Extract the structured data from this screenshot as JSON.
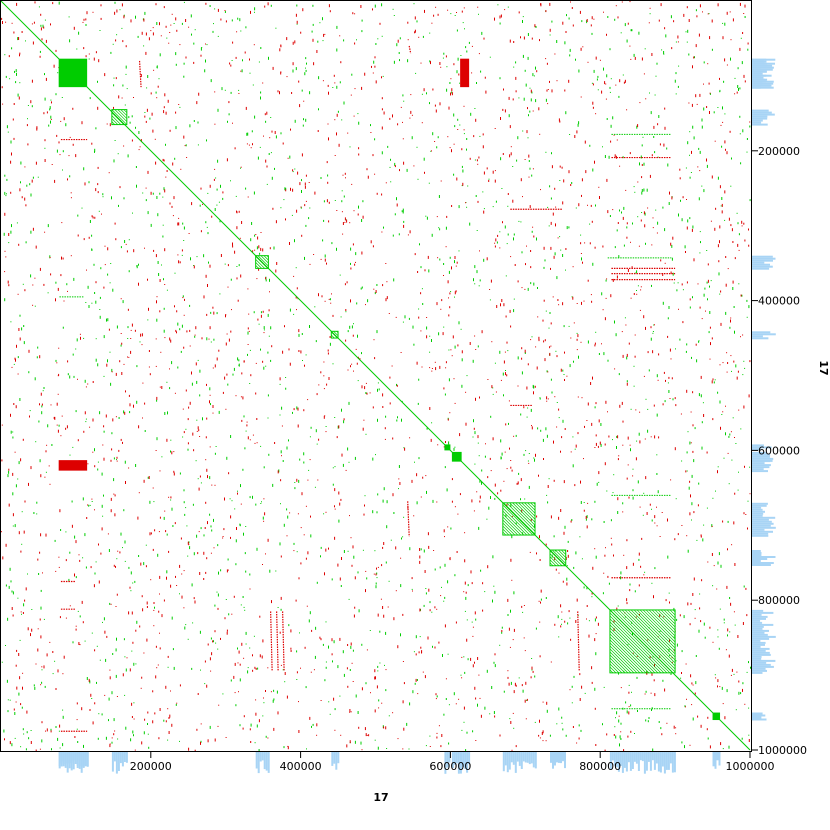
{
  "chart_data": {
    "type": "scatter",
    "title": "",
    "xlabel": "17",
    "ylabel": "17",
    "xlim": [
      0,
      1000000
    ],
    "ylim": [
      0,
      1000000
    ],
    "y_inverted": true,
    "grid": false,
    "x_ticks": [
      {
        "value": 200000,
        "label": "200000"
      },
      {
        "value": 400000,
        "label": "400000"
      },
      {
        "value": 600000,
        "label": "600000"
      },
      {
        "value": 800000,
        "label": "800000"
      },
      {
        "value": 1000000,
        "label": "1000000"
      }
    ],
    "y_ticks": [
      {
        "value": 200000,
        "label": "200000"
      },
      {
        "value": 400000,
        "label": "400000"
      },
      {
        "value": 600000,
        "label": "600000"
      },
      {
        "value": 800000,
        "label": "800000"
      },
      {
        "value": 1000000,
        "label": "1000000"
      }
    ],
    "colors": {
      "forward": "#00cc00",
      "reverse": "#dd0000",
      "coverage": "#a8d4f5",
      "coverage_alt": "#f5c89a"
    },
    "diagonal": {
      "from": [
        0,
        0
      ],
      "to": [
        1000000,
        1000000
      ],
      "color": "#00cc00"
    },
    "forward_blocks": [
      {
        "x": [
          77000,
          115000
        ],
        "y": [
          77000,
          115000
        ],
        "style": "solid"
      },
      {
        "x": [
          602000,
          615000
        ],
        "y": [
          602000,
          615000
        ],
        "style": "solid"
      },
      {
        "x": [
          592000,
          600000
        ],
        "y": [
          592000,
          600000
        ],
        "style": "solid"
      },
      {
        "x": [
          950000,
          960000
        ],
        "y": [
          950000,
          960000
        ],
        "style": "solid"
      },
      {
        "x": [
          670000,
          713000
        ],
        "y": [
          670000,
          713000
        ],
        "style": "hatched"
      },
      {
        "x": [
          733000,
          754000
        ],
        "y": [
          733000,
          754000
        ],
        "style": "hatched"
      },
      {
        "x": [
          813000,
          900000
        ],
        "y": [
          813000,
          897000
        ],
        "style": "hatched"
      },
      {
        "x": [
          340000,
          357000
        ],
        "y": [
          340000,
          357000
        ],
        "style": "hatched"
      },
      {
        "x": [
          441000,
          450000
        ],
        "y": [
          441000,
          450000
        ],
        "style": "hatched"
      },
      {
        "x": [
          148000,
          168000
        ],
        "y": [
          145000,
          165000
        ],
        "style": "hatched"
      }
    ],
    "reverse_blocks": [
      {
        "x": [
          613000,
          625000
        ],
        "y": [
          77000,
          115000
        ]
      },
      {
        "x": [
          77000,
          115000
        ],
        "y": [
          613000,
          627000
        ]
      }
    ],
    "forward_segments": [
      {
        "x": [
          815000,
          895000
        ],
        "y": [
          178000,
          178000
        ]
      },
      {
        "x": [
          815000,
          895000
        ],
        "y": [
          660000,
          660000
        ]
      },
      {
        "x": [
          815000,
          895000
        ],
        "y": [
          945000,
          945000
        ]
      },
      {
        "x": [
          810000,
          895000
        ],
        "y": [
          343000,
          343000
        ]
      },
      {
        "x": [
          78000,
          110000
        ],
        "y": [
          395000,
          395000
        ]
      }
    ],
    "reverse_segments": [
      {
        "x": [
          815000,
          895000
        ],
        "y": [
          209000,
          209000
        ]
      },
      {
        "x": [
          815000,
          900000
        ],
        "y": [
          357000,
          357000
        ]
      },
      {
        "x": [
          815000,
          900000
        ],
        "y": [
          364000,
          364000
        ]
      },
      {
        "x": [
          815000,
          900000
        ],
        "y": [
          372000,
          372000
        ]
      },
      {
        "x": [
          680000,
          710000
        ],
        "y": [
          540000,
          540000
        ]
      },
      {
        "x": [
          680000,
          750000
        ],
        "y": [
          278000,
          278000
        ]
      },
      {
        "x": [
          80000,
          115000
        ],
        "y": [
          185000,
          185000
        ]
      },
      {
        "x": [
          80000,
          100000
        ],
        "y": [
          775000,
          775000
        ]
      },
      {
        "x": [
          80000,
          100000
        ],
        "y": [
          812000,
          812000
        ]
      },
      {
        "x": [
          80000,
          115000
        ],
        "y": [
          975000,
          975000
        ]
      },
      {
        "x": [
          815000,
          895000
        ],
        "y": [
          770000,
          770000
        ]
      },
      {
        "x": [
          360000,
          362000
        ],
        "y": [
          815000,
          895000
        ]
      },
      {
        "x": [
          368000,
          370000
        ],
        "y": [
          815000,
          895000
        ]
      },
      {
        "x": [
          376000,
          378000
        ],
        "y": [
          815000,
          895000
        ]
      },
      {
        "x": [
          543000,
          545000
        ],
        "y": [
          668000,
          715000
        ]
      },
      {
        "x": [
          770000,
          772000
        ],
        "y": [
          815000,
          895000
        ]
      },
      {
        "x": [
          185000,
          187000
        ],
        "y": [
          80000,
          115000
        ]
      },
      {
        "x": [
          545000,
          547000
        ],
        "y": [
          60000,
          70000
        ]
      }
    ],
    "random_dots": {
      "forward_count": 1900,
      "reverse_count": 2300,
      "seed": 17
    }
  }
}
